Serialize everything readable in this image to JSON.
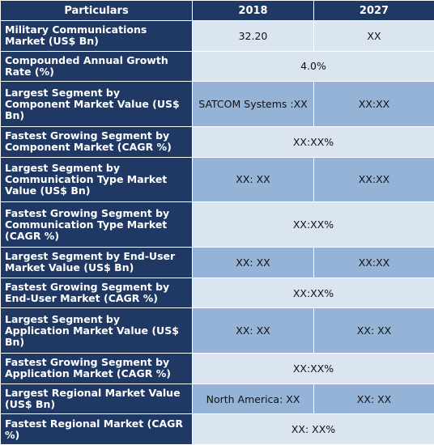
{
  "header": {
    "particulars": "Particulars",
    "y2018": "2018",
    "y2027": "2027"
  },
  "rows": [
    {
      "label": "Military Communications  Market (US$ Bn)",
      "v2018": "32.20",
      "v2027": "XX"
    },
    {
      "label": "Compounded Annual Growth Rate (%)",
      "merged": "4.0%"
    },
    {
      "label": "Largest Segment by Component Market Value (US$ Bn)",
      "v2018": "SATCOM Systems :XX",
      "v2027": "XX:XX"
    },
    {
      "label": "Fastest Growing Segment by Component Market (CAGR %)",
      "merged": "XX:XX%"
    },
    {
      "label": "Largest Segment by Communication Type Market Value (US$ Bn)",
      "v2018": "XX: XX",
      "v2027": "XX:XX"
    },
    {
      "label": "Fastest Growing Segment by Communication Type Market (CAGR %)",
      "merged": "XX:XX%"
    },
    {
      "label": "Largest Segment by End-User Market Value (US$ Bn)",
      "v2018": "XX: XX",
      "v2027": "XX:XX"
    },
    {
      "label": "Fastest Growing Segment by End-User Market (CAGR %)",
      "merged": "XX:XX%"
    },
    {
      "label": "Largest Segment by Application Market Value (US$ Bn)",
      "v2018": "XX: XX",
      "v2027": "XX: XX"
    },
    {
      "label": "Fastest Growing Segment by Application Market (CAGR %)",
      "merged": "XX:XX%"
    },
    {
      "label": "Largest Regional Market Value (US$ Bn)",
      "v2018": "North America: XX",
      "v2027": "XX: XX"
    },
    {
      "label": "Fastest Regional Market (CAGR %)",
      "merged": "XX: XX%"
    }
  ]
}
